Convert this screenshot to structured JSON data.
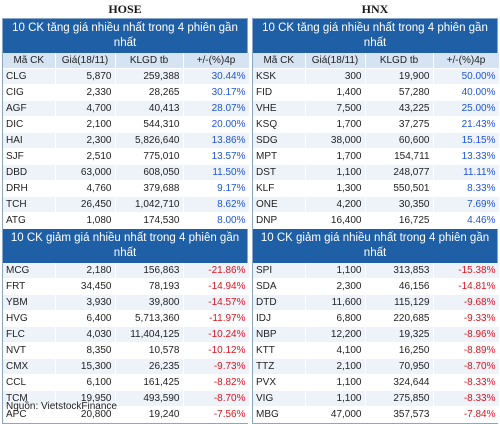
{
  "hose": {
    "title": "HOSE",
    "gain_title": "10 CK tăng giá nhiều nhất trong 4 phiên gần nhất",
    "loss_title": "10 CK giảm giá nhiều nhất trong 4 phiên gần nhất",
    "gainers": [
      {
        "code": "CLG",
        "price": "5,870",
        "vol": "259,388",
        "chg": "30.44%"
      },
      {
        "code": "CIG",
        "price": "2,330",
        "vol": "28,265",
        "chg": "30.17%"
      },
      {
        "code": "AGF",
        "price": "4,700",
        "vol": "40,413",
        "chg": "28.07%"
      },
      {
        "code": "DIC",
        "price": "2,100",
        "vol": "544,310",
        "chg": "20.00%"
      },
      {
        "code": "HAI",
        "price": "2,300",
        "vol": "5,826,640",
        "chg": "13.86%"
      },
      {
        "code": "SJF",
        "price": "2,510",
        "vol": "775,010",
        "chg": "13.57%"
      },
      {
        "code": "DBD",
        "price": "63,000",
        "vol": "608,050",
        "chg": "11.50%"
      },
      {
        "code": "DRH",
        "price": "4,760",
        "vol": "379,688",
        "chg": "9.17%"
      },
      {
        "code": "TCH",
        "price": "26,450",
        "vol": "1,042,710",
        "chg": "8.62%"
      },
      {
        "code": "ATG",
        "price": "1,080",
        "vol": "174,530",
        "chg": "8.00%"
      }
    ],
    "losers": [
      {
        "code": "MCG",
        "price": "2,180",
        "vol": "156,863",
        "chg": "-21.86%"
      },
      {
        "code": "FRT",
        "price": "34,450",
        "vol": "78,193",
        "chg": "-14.94%"
      },
      {
        "code": "YBM",
        "price": "3,930",
        "vol": "39,800",
        "chg": "-14.57%"
      },
      {
        "code": "HVG",
        "price": "6,400",
        "vol": "5,713,360",
        "chg": "-11.97%"
      },
      {
        "code": "FLC",
        "price": "4,030",
        "vol": "11,404,125",
        "chg": "-10.24%"
      },
      {
        "code": "NVT",
        "price": "8,350",
        "vol": "10,578",
        "chg": "-10.12%"
      },
      {
        "code": "CMX",
        "price": "15,300",
        "vol": "26,235",
        "chg": "-9.73%"
      },
      {
        "code": "CCL",
        "price": "6,100",
        "vol": "161,425",
        "chg": "-8.82%"
      },
      {
        "code": "TCM",
        "price": "19,950",
        "vol": "493,590",
        "chg": "-8.70%"
      },
      {
        "code": "APC",
        "price": "20,800",
        "vol": "19,240",
        "chg": "-7.56%"
      }
    ]
  },
  "hnx": {
    "title": "HNX",
    "gain_title": "10 CK tăng giá nhiều nhất trong 4 phiên gần nhất",
    "loss_title": "10 CK giảm giá nhiều nhất trong 4 phiên gần nhất",
    "gainers": [
      {
        "code": "KSK",
        "price": "300",
        "vol": "19,900",
        "chg": "50.00%"
      },
      {
        "code": "FID",
        "price": "1,400",
        "vol": "57,280",
        "chg": "40.00%"
      },
      {
        "code": "VHE",
        "price": "7,500",
        "vol": "43,225",
        "chg": "25.00%"
      },
      {
        "code": "KSQ",
        "price": "1,700",
        "vol": "37,275",
        "chg": "21.43%"
      },
      {
        "code": "SDG",
        "price": "38,000",
        "vol": "60,600",
        "chg": "15.15%"
      },
      {
        "code": "MPT",
        "price": "1,700",
        "vol": "154,711",
        "chg": "13.33%"
      },
      {
        "code": "DST",
        "price": "1,100",
        "vol": "248,077",
        "chg": "11.11%"
      },
      {
        "code": "KLF",
        "price": "1,300",
        "vol": "550,501",
        "chg": "8.33%"
      },
      {
        "code": "ONE",
        "price": "4,200",
        "vol": "30,350",
        "chg": "7.69%"
      },
      {
        "code": "DNP",
        "price": "16,400",
        "vol": "16,725",
        "chg": "4.46%"
      }
    ],
    "losers": [
      {
        "code": "SPI",
        "price": "1,100",
        "vol": "313,853",
        "chg": "-15.38%"
      },
      {
        "code": "SDA",
        "price": "2,300",
        "vol": "46,156",
        "chg": "-14.81%"
      },
      {
        "code": "DTD",
        "price": "11,600",
        "vol": "115,129",
        "chg": "-9.68%"
      },
      {
        "code": "IDJ",
        "price": "6,800",
        "vol": "220,685",
        "chg": "-9.33%"
      },
      {
        "code": "NBP",
        "price": "12,200",
        "vol": "19,325",
        "chg": "-8.96%"
      },
      {
        "code": "KTT",
        "price": "4,100",
        "vol": "16,250",
        "chg": "-8.89%"
      },
      {
        "code": "TTZ",
        "price": "2,100",
        "vol": "70,950",
        "chg": "-8.70%"
      },
      {
        "code": "PVX",
        "price": "1,100",
        "vol": "324,644",
        "chg": "-8.33%"
      },
      {
        "code": "VIG",
        "price": "1,100",
        "vol": "275,850",
        "chg": "-8.33%"
      },
      {
        "code": "MBG",
        "price": "47,000",
        "vol": "357,573",
        "chg": "-7.84%"
      }
    ]
  },
  "columns": {
    "code": "Mã CK",
    "price": "Giá(18/11)",
    "vol": "KLGD tb",
    "chg": "+/-(%)4p"
  },
  "footer": "Nguồn: VietstockFinance",
  "colors": {
    "header_bg": "#1f5fa6",
    "col_header_bg": "#d5e3f3",
    "up": "#1f56d6",
    "down": "#e0141e"
  }
}
